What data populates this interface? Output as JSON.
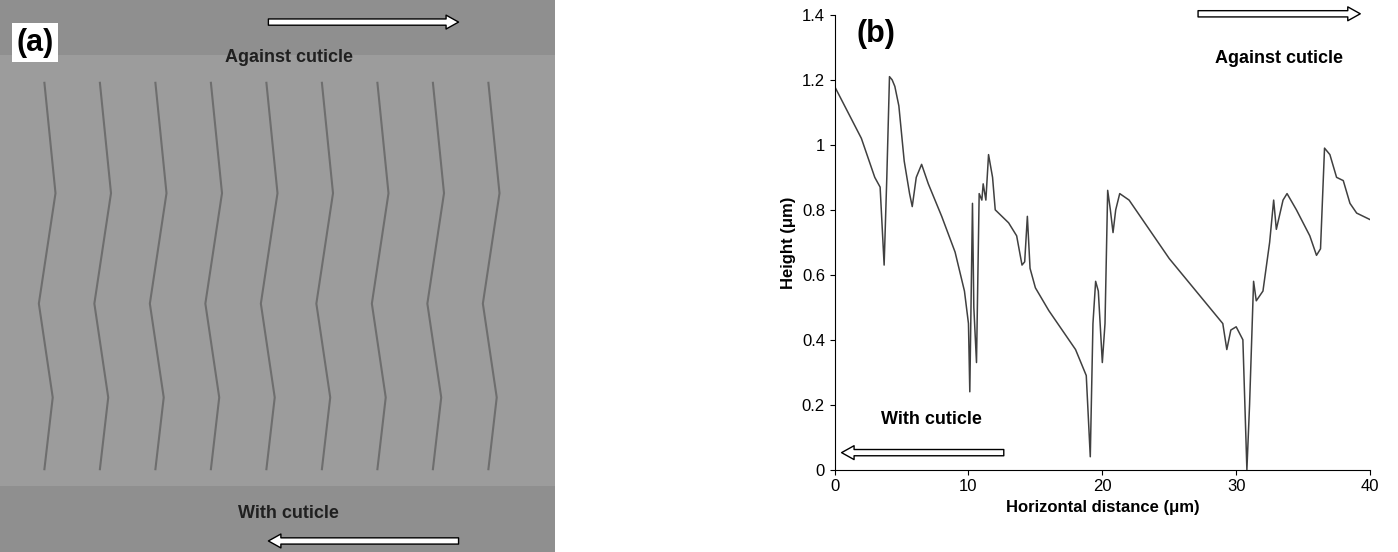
{
  "image_panel": {
    "label": "(a)",
    "top_arrow_text": "Against cuticle",
    "bottom_arrow_text": "With cuticle"
  },
  "chart_data": {
    "type": "line",
    "panel_label": "(b)",
    "x_label": "Horizontal distance (μm)",
    "y_label": "Height (μm)",
    "annotations": [
      "Against cuticle",
      "With cuticle"
    ],
    "x": [
      0,
      1,
      2,
      3,
      3.4,
      3.7,
      3.9,
      4.1,
      4.3,
      4.5,
      4.8,
      5.2,
      5.6,
      5.8,
      6.1,
      6.5,
      7,
      8,
      9,
      9.7,
      10,
      10.1,
      10.3,
      10.4,
      10.6,
      10.8,
      11,
      11.1,
      11.3,
      11.5,
      11.8,
      12,
      13,
      13.6,
      14,
      14.2,
      14.4,
      14.6,
      15,
      16,
      17,
      18,
      18.8,
      19.1,
      19.3,
      19.5,
      19.7,
      20,
      20.2,
      20.4,
      20.6,
      20.8,
      21,
      21.3,
      22,
      23,
      24,
      25,
      26,
      27,
      28,
      29,
      29.3,
      29.6,
      30,
      30.5,
      30.8,
      31,
      31.3,
      31.5,
      32,
      32.5,
      32.8,
      33,
      33.5,
      33.8,
      34.5,
      35.5,
      36,
      36.3,
      36.6,
      37,
      37.5,
      38,
      38.5,
      39,
      40
    ],
    "values": [
      1.18,
      1.1,
      1.02,
      0.9,
      0.87,
      0.63,
      0.9,
      1.21,
      1.2,
      1.18,
      1.12,
      0.95,
      0.85,
      0.81,
      0.9,
      0.94,
      0.88,
      0.78,
      0.67,
      0.55,
      0.45,
      0.24,
      0.82,
      0.5,
      0.33,
      0.85,
      0.83,
      0.88,
      0.83,
      0.97,
      0.9,
      0.8,
      0.76,
      0.72,
      0.63,
      0.64,
      0.78,
      0.62,
      0.56,
      0.49,
      0.43,
      0.37,
      0.29,
      0.04,
      0.45,
      0.58,
      0.55,
      0.33,
      0.45,
      0.86,
      0.8,
      0.73,
      0.8,
      0.85,
      0.83,
      0.77,
      0.71,
      0.65,
      0.6,
      0.55,
      0.5,
      0.45,
      0.37,
      0.43,
      0.44,
      0.4,
      0.0,
      0.2,
      0.58,
      0.52,
      0.55,
      0.7,
      0.83,
      0.74,
      0.83,
      0.85,
      0.8,
      0.72,
      0.66,
      0.68,
      0.99,
      0.97,
      0.9,
      0.89,
      0.82,
      0.79,
      0.77
    ],
    "color": "#404040",
    "xlim": [
      0,
      40
    ],
    "xticks": [
      0,
      10,
      20,
      30,
      40
    ],
    "ylim": [
      0,
      1.4
    ],
    "yticks": [
      0,
      0.2,
      0.4,
      0.6,
      0.8,
      1,
      1.2,
      1.4
    ],
    "grid": false
  }
}
